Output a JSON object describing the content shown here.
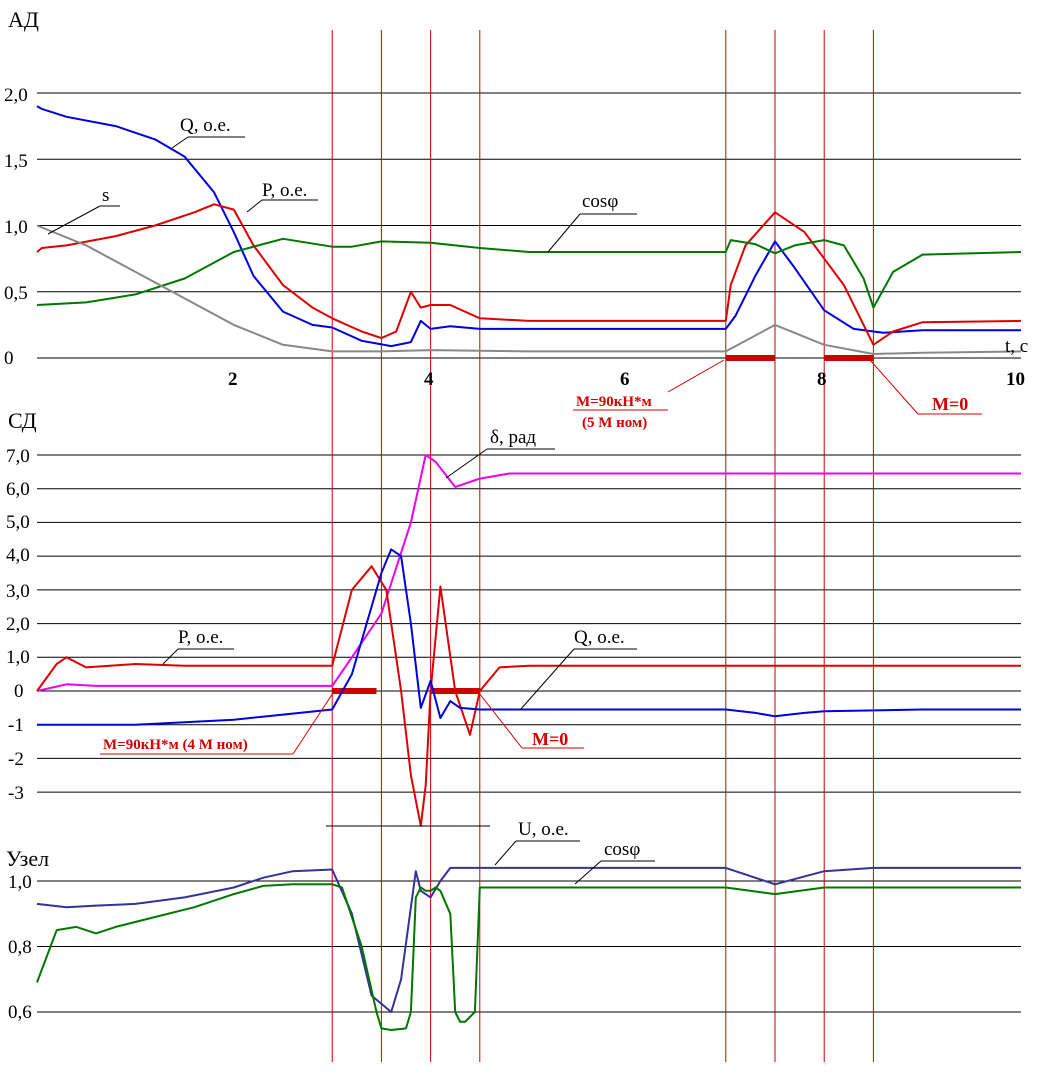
{
  "chart_data": [
    {
      "type": "line",
      "panel_title": "АД",
      "xlabel": "t, c",
      "ylabel": "",
      "xlim": [
        0,
        10
      ],
      "ylim": [
        0,
        2.3
      ],
      "grid": true,
      "x_ticks": [
        "2",
        "4",
        "6",
        "8",
        "10"
      ],
      "y_ticks": [
        "0",
        "0,5",
        "1,0",
        "1,5",
        "2,0"
      ],
      "series": [
        {
          "name": "Q, о.е.",
          "color": "#0000dd",
          "x": [
            0,
            0.05,
            0.3,
            0.8,
            1.2,
            1.5,
            1.8,
            2.0,
            2.2,
            2.5,
            2.8,
            3.0,
            3.3,
            3.6,
            3.8,
            3.9,
            4.0,
            4.2,
            4.5,
            5.0,
            6.0,
            7.0,
            7.1,
            7.3,
            7.5,
            7.7,
            8.0,
            8.3,
            8.6,
            9.0,
            10.0
          ],
          "y": [
            1.9,
            1.88,
            1.82,
            1.75,
            1.65,
            1.52,
            1.25,
            0.95,
            0.62,
            0.35,
            0.25,
            0.23,
            0.13,
            0.09,
            0.12,
            0.28,
            0.22,
            0.24,
            0.22,
            0.22,
            0.22,
            0.22,
            0.32,
            0.62,
            0.88,
            0.68,
            0.36,
            0.22,
            0.19,
            0.21,
            0.21
          ]
        },
        {
          "name": "P, о.е.",
          "color": "#dd0000",
          "x": [
            0,
            0.05,
            0.3,
            0.8,
            1.2,
            1.6,
            1.8,
            2.0,
            2.2,
            2.5,
            2.8,
            3.0,
            3.3,
            3.5,
            3.65,
            3.8,
            3.9,
            4.0,
            4.2,
            4.5,
            5.0,
            6.0,
            7.0,
            7.05,
            7.2,
            7.5,
            7.8,
            8.2,
            8.5,
            8.7,
            9.0,
            10.0
          ],
          "y": [
            0.8,
            0.83,
            0.85,
            0.92,
            1.0,
            1.1,
            1.16,
            1.12,
            0.85,
            0.55,
            0.38,
            0.3,
            0.2,
            0.15,
            0.2,
            0.5,
            0.38,
            0.4,
            0.4,
            0.3,
            0.28,
            0.28,
            0.28,
            0.55,
            0.85,
            1.1,
            0.95,
            0.55,
            0.1,
            0.2,
            0.27,
            0.28
          ]
        },
        {
          "name": "cosφ",
          "color": "#007700",
          "x": [
            0,
            0.5,
            1.0,
            1.5,
            2.0,
            2.5,
            3.0,
            3.2,
            3.5,
            4.0,
            4.5,
            5.0,
            6.0,
            7.0,
            7.05,
            7.3,
            7.5,
            7.7,
            8.0,
            8.2,
            8.4,
            8.5,
            8.7,
            9.0,
            10.0
          ],
          "y": [
            0.4,
            0.42,
            0.48,
            0.6,
            0.8,
            0.9,
            0.84,
            0.84,
            0.88,
            0.87,
            0.83,
            0.8,
            0.8,
            0.8,
            0.89,
            0.86,
            0.79,
            0.85,
            0.89,
            0.85,
            0.6,
            0.38,
            0.65,
            0.78,
            0.8
          ]
        },
        {
          "name": "s",
          "color": "#888888",
          "x": [
            0,
            0.5,
            1.0,
            1.5,
            2.0,
            2.5,
            3.0,
            3.5,
            4.0,
            5.0,
            6.0,
            7.0,
            7.5,
            8.0,
            8.5,
            9.0,
            10.0
          ],
          "y": [
            1.0,
            0.85,
            0.65,
            0.45,
            0.25,
            0.1,
            0.05,
            0.05,
            0.06,
            0.05,
            0.05,
            0.05,
            0.25,
            0.1,
            0.03,
            0.04,
            0.05
          ]
        }
      ],
      "series_labels": [
        "Q, о.е.",
        "P, о.е.",
        "cosφ",
        "s"
      ],
      "annotations": [
        "M=90кН*м",
        "(5 М ном)",
        "M=0"
      ]
    },
    {
      "type": "line",
      "panel_title": "СД",
      "xlabel": "",
      "ylabel": "",
      "xlim": [
        0,
        10
      ],
      "ylim": [
        -3.3,
        7.5
      ],
      "grid": true,
      "y_ticks": [
        "-3",
        "-2",
        "-1",
        "0",
        "1,0",
        "2,0",
        "3,0",
        "4,0",
        "5,0",
        "6,0",
        "7,0"
      ],
      "series": [
        {
          "name": "δ, рад",
          "color": "#ee00ee",
          "x": [
            0,
            0.3,
            0.6,
            1.0,
            2.0,
            3.0,
            3.2,
            3.5,
            3.8,
            3.95,
            4.05,
            4.25,
            4.5,
            4.8,
            5.0,
            6.0,
            7.0,
            8.0,
            10.0
          ],
          "y": [
            0,
            0.2,
            0.15,
            0.15,
            0.15,
            0.15,
            1.0,
            2.3,
            5.0,
            7.0,
            6.8,
            6.05,
            6.3,
            6.45,
            6.45,
            6.45,
            6.45,
            6.45,
            6.45
          ]
        },
        {
          "name": "P, о.е.",
          "color": "#dd0000",
          "x": [
            0,
            0.2,
            0.3,
            0.5,
            1.0,
            1.5,
            2.0,
            3.0,
            3.2,
            3.4,
            3.55,
            3.7,
            3.8,
            3.9,
            3.95,
            4.0,
            4.1,
            4.25,
            4.4,
            4.5,
            4.7,
            5.0,
            6.0,
            7.0,
            8.0,
            10.0
          ],
          "y": [
            0,
            0.8,
            1.0,
            0.7,
            0.8,
            0.75,
            0.75,
            0.75,
            3.0,
            3.7,
            3.0,
            0.0,
            -2.5,
            -4.0,
            -2.8,
            0.0,
            3.1,
            0.0,
            -1.3,
            0.0,
            0.7,
            0.75,
            0.75,
            0.75,
            0.75,
            0.75
          ]
        },
        {
          "name": "Q, о.е.",
          "color": "#0000dd",
          "x": [
            0,
            1.0,
            2.0,
            2.5,
            3.0,
            3.2,
            3.5,
            3.6,
            3.7,
            3.8,
            3.9,
            4.0,
            4.1,
            4.2,
            4.3,
            4.5,
            4.7,
            5.0,
            6.0,
            7.0,
            7.3,
            7.5,
            7.8,
            8.0,
            9.0,
            10.0
          ],
          "y": [
            -1.0,
            -1.0,
            -0.85,
            -0.7,
            -0.55,
            0.5,
            3.5,
            4.2,
            4.0,
            2.0,
            -0.5,
            0.3,
            -0.8,
            -0.3,
            -0.5,
            -0.55,
            -0.55,
            -0.55,
            -0.55,
            -0.55,
            -0.65,
            -0.75,
            -0.65,
            -0.6,
            -0.55,
            -0.55
          ]
        }
      ],
      "series_labels": [
        "δ, рад",
        "P, о.е.",
        "Q, о.е."
      ],
      "annotations": [
        "M=90кН*м (4 М ном)",
        "M=0"
      ]
    },
    {
      "type": "line",
      "panel_title": "Узел",
      "xlabel": "",
      "ylabel": "",
      "xlim": [
        0,
        10
      ],
      "ylim": [
        0.54,
        1.06
      ],
      "grid": true,
      "y_ticks": [
        "0,6",
        "0,8",
        "1,0"
      ],
      "series": [
        {
          "name": "U, о.е.",
          "color": "#333399",
          "x": [
            0,
            0.3,
            0.6,
            1.0,
            1.5,
            2.0,
            2.3,
            2.6,
            3.0,
            3.2,
            3.4,
            3.6,
            3.7,
            3.85,
            3.9,
            4.0,
            4.1,
            4.2,
            4.3,
            4.5,
            5.0,
            6.0,
            7.0,
            7.5,
            8.0,
            8.5,
            10.0
          ],
          "y": [
            0.93,
            0.92,
            0.925,
            0.93,
            0.95,
            0.98,
            1.01,
            1.03,
            1.035,
            0.9,
            0.65,
            0.6,
            0.7,
            1.03,
            0.97,
            0.95,
            1.0,
            1.04,
            1.04,
            1.04,
            1.04,
            1.04,
            1.04,
            0.99,
            1.03,
            1.04,
            1.04
          ]
        },
        {
          "name": "cosφ",
          "color": "#007700",
          "x": [
            0,
            0.05,
            0.2,
            0.4,
            0.6,
            0.8,
            1.2,
            1.6,
            2.0,
            2.3,
            2.6,
            3.0,
            3.1,
            3.3,
            3.45,
            3.5,
            3.6,
            3.75,
            3.8,
            3.85,
            3.9,
            3.95,
            4.0,
            4.05,
            4.1,
            4.2,
            4.25,
            4.3,
            4.35,
            4.45,
            4.5,
            5.0,
            6.0,
            7.0,
            7.5,
            8.0,
            8.5,
            10.0
          ],
          "y": [
            0.69,
            0.73,
            0.85,
            0.86,
            0.84,
            0.86,
            0.89,
            0.92,
            0.96,
            0.985,
            0.99,
            0.99,
            0.98,
            0.8,
            0.6,
            0.55,
            0.545,
            0.55,
            0.6,
            0.95,
            0.98,
            0.97,
            0.97,
            0.98,
            0.97,
            0.9,
            0.6,
            0.57,
            0.57,
            0.6,
            0.98,
            0.98,
            0.98,
            0.98,
            0.96,
            0.98,
            0.98,
            0.98
          ]
        }
      ],
      "series_labels": [
        "U, о.е.",
        "cosφ"
      ]
    }
  ],
  "event_lines_x": [
    3.0,
    3.5,
    4.0,
    4.5,
    7.0,
    7.5,
    8.0,
    8.5
  ],
  "load_bars": [
    {
      "panel": 0,
      "x0": 7.0,
      "x1": 7.5
    },
    {
      "panel": 0,
      "x0": 8.0,
      "x1": 8.5
    },
    {
      "panel": 1,
      "x0": 3.0,
      "x1": 3.45
    },
    {
      "panel": 1,
      "x0": 4.0,
      "x1": 4.5
    }
  ],
  "colors": {
    "grid": "#000000",
    "event": "#cc0000"
  }
}
